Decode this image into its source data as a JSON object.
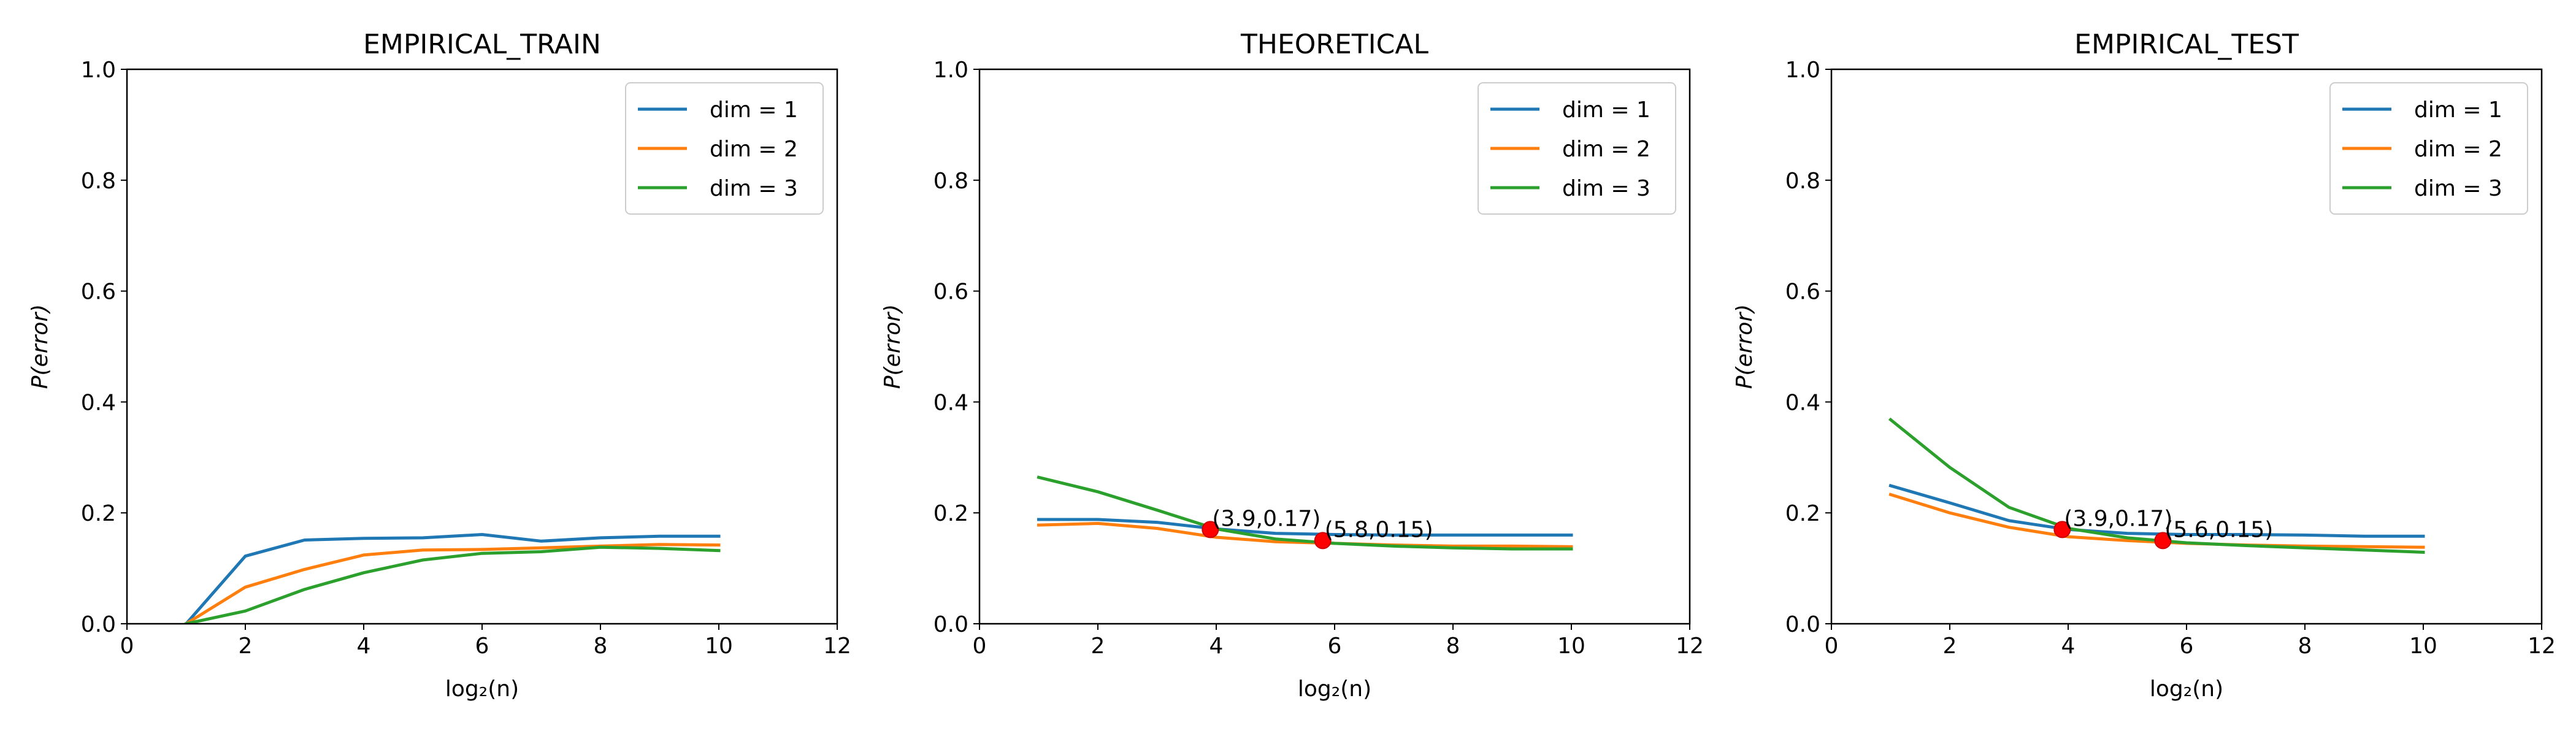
{
  "chart_data": [
    {
      "type": "line",
      "title": "EMPIRICAL_TRAIN",
      "xlabel": "log₂(n)",
      "ylabel": "P(error)",
      "xlim": [
        0,
        12
      ],
      "ylim": [
        0,
        1.0
      ],
      "xticks": [
        "0",
        "2",
        "4",
        "6",
        "8",
        "10",
        "12"
      ],
      "yticks": [
        "0.0",
        "0.2",
        "0.4",
        "0.6",
        "0.8",
        "1.0"
      ],
      "legend_position": "top-right",
      "grid": false,
      "x": [
        1,
        2,
        3,
        4,
        5,
        6,
        7,
        8,
        9,
        10
      ],
      "series": [
        {
          "name": "dim = 1",
          "color": "#1f77b4",
          "values": [
            0.0,
            0.122,
            0.151,
            0.154,
            0.155,
            0.161,
            0.149,
            0.155,
            0.158,
            0.158
          ]
        },
        {
          "name": "dim = 2",
          "color": "#ff7f0e",
          "values": [
            0.0,
            0.066,
            0.098,
            0.124,
            0.133,
            0.134,
            0.137,
            0.14,
            0.143,
            0.142
          ]
        },
        {
          "name": "dim = 3",
          "color": "#2ca02c",
          "values": [
            0.0,
            0.023,
            0.062,
            0.092,
            0.115,
            0.127,
            0.13,
            0.138,
            0.136,
            0.132
          ]
        }
      ],
      "annotations": []
    },
    {
      "type": "line",
      "title": "THEORETICAL",
      "xlabel": "log₂(n)",
      "ylabel": "P(error)",
      "xlim": [
        0,
        12
      ],
      "ylim": [
        0,
        1.0
      ],
      "xticks": [
        "0",
        "2",
        "4",
        "6",
        "8",
        "10",
        "12"
      ],
      "yticks": [
        "0.0",
        "0.2",
        "0.4",
        "0.6",
        "0.8",
        "1.0"
      ],
      "legend_position": "top-right",
      "grid": false,
      "x": [
        1,
        2,
        3,
        4,
        5,
        6,
        7,
        8,
        9,
        10
      ],
      "series": [
        {
          "name": "dim = 1",
          "color": "#1f77b4",
          "values": [
            0.188,
            0.188,
            0.183,
            0.171,
            0.163,
            0.161,
            0.16,
            0.16,
            0.16,
            0.16
          ]
        },
        {
          "name": "dim = 2",
          "color": "#ff7f0e",
          "values": [
            0.178,
            0.181,
            0.172,
            0.156,
            0.148,
            0.145,
            0.142,
            0.14,
            0.14,
            0.139
          ]
        },
        {
          "name": "dim = 3",
          "color": "#2ca02c",
          "values": [
            0.264,
            0.238,
            0.205,
            0.171,
            0.153,
            0.145,
            0.14,
            0.137,
            0.135,
            0.135
          ]
        }
      ],
      "annotations": [
        {
          "x": 3.9,
          "y": 0.17,
          "text": "(3.9,0.17)",
          "color": "#ff0000"
        },
        {
          "x": 5.8,
          "y": 0.15,
          "text": "(5.8,0.15)",
          "color": "#ff0000"
        }
      ]
    },
    {
      "type": "line",
      "title": "EMPIRICAL_TEST",
      "xlabel": "log₂(n)",
      "ylabel": "P(error)",
      "xlim": [
        0,
        12
      ],
      "ylim": [
        0,
        1.0
      ],
      "xticks": [
        "0",
        "2",
        "4",
        "6",
        "8",
        "10",
        "12"
      ],
      "yticks": [
        "0.0",
        "0.2",
        "0.4",
        "0.6",
        "0.8",
        "1.0"
      ],
      "legend_position": "top-right",
      "grid": false,
      "x": [
        1,
        2,
        3,
        4,
        5,
        6,
        7,
        8,
        9,
        10
      ],
      "series": [
        {
          "name": "dim = 1",
          "color": "#1f77b4",
          "values": [
            0.249,
            0.218,
            0.186,
            0.17,
            0.163,
            0.161,
            0.161,
            0.16,
            0.158,
            0.158
          ]
        },
        {
          "name": "dim = 2",
          "color": "#ff7f0e",
          "values": [
            0.233,
            0.2,
            0.174,
            0.157,
            0.15,
            0.145,
            0.142,
            0.14,
            0.139,
            0.138
          ]
        },
        {
          "name": "dim = 3",
          "color": "#2ca02c",
          "values": [
            0.368,
            0.282,
            0.21,
            0.172,
            0.155,
            0.146,
            0.141,
            0.137,
            0.133,
            0.129
          ]
        }
      ],
      "annotations": [
        {
          "x": 3.9,
          "y": 0.17,
          "text": "(3.9,0.17)",
          "color": "#ff0000"
        },
        {
          "x": 5.6,
          "y": 0.15,
          "text": "(5.6,0.15)",
          "color": "#ff0000"
        }
      ]
    }
  ]
}
